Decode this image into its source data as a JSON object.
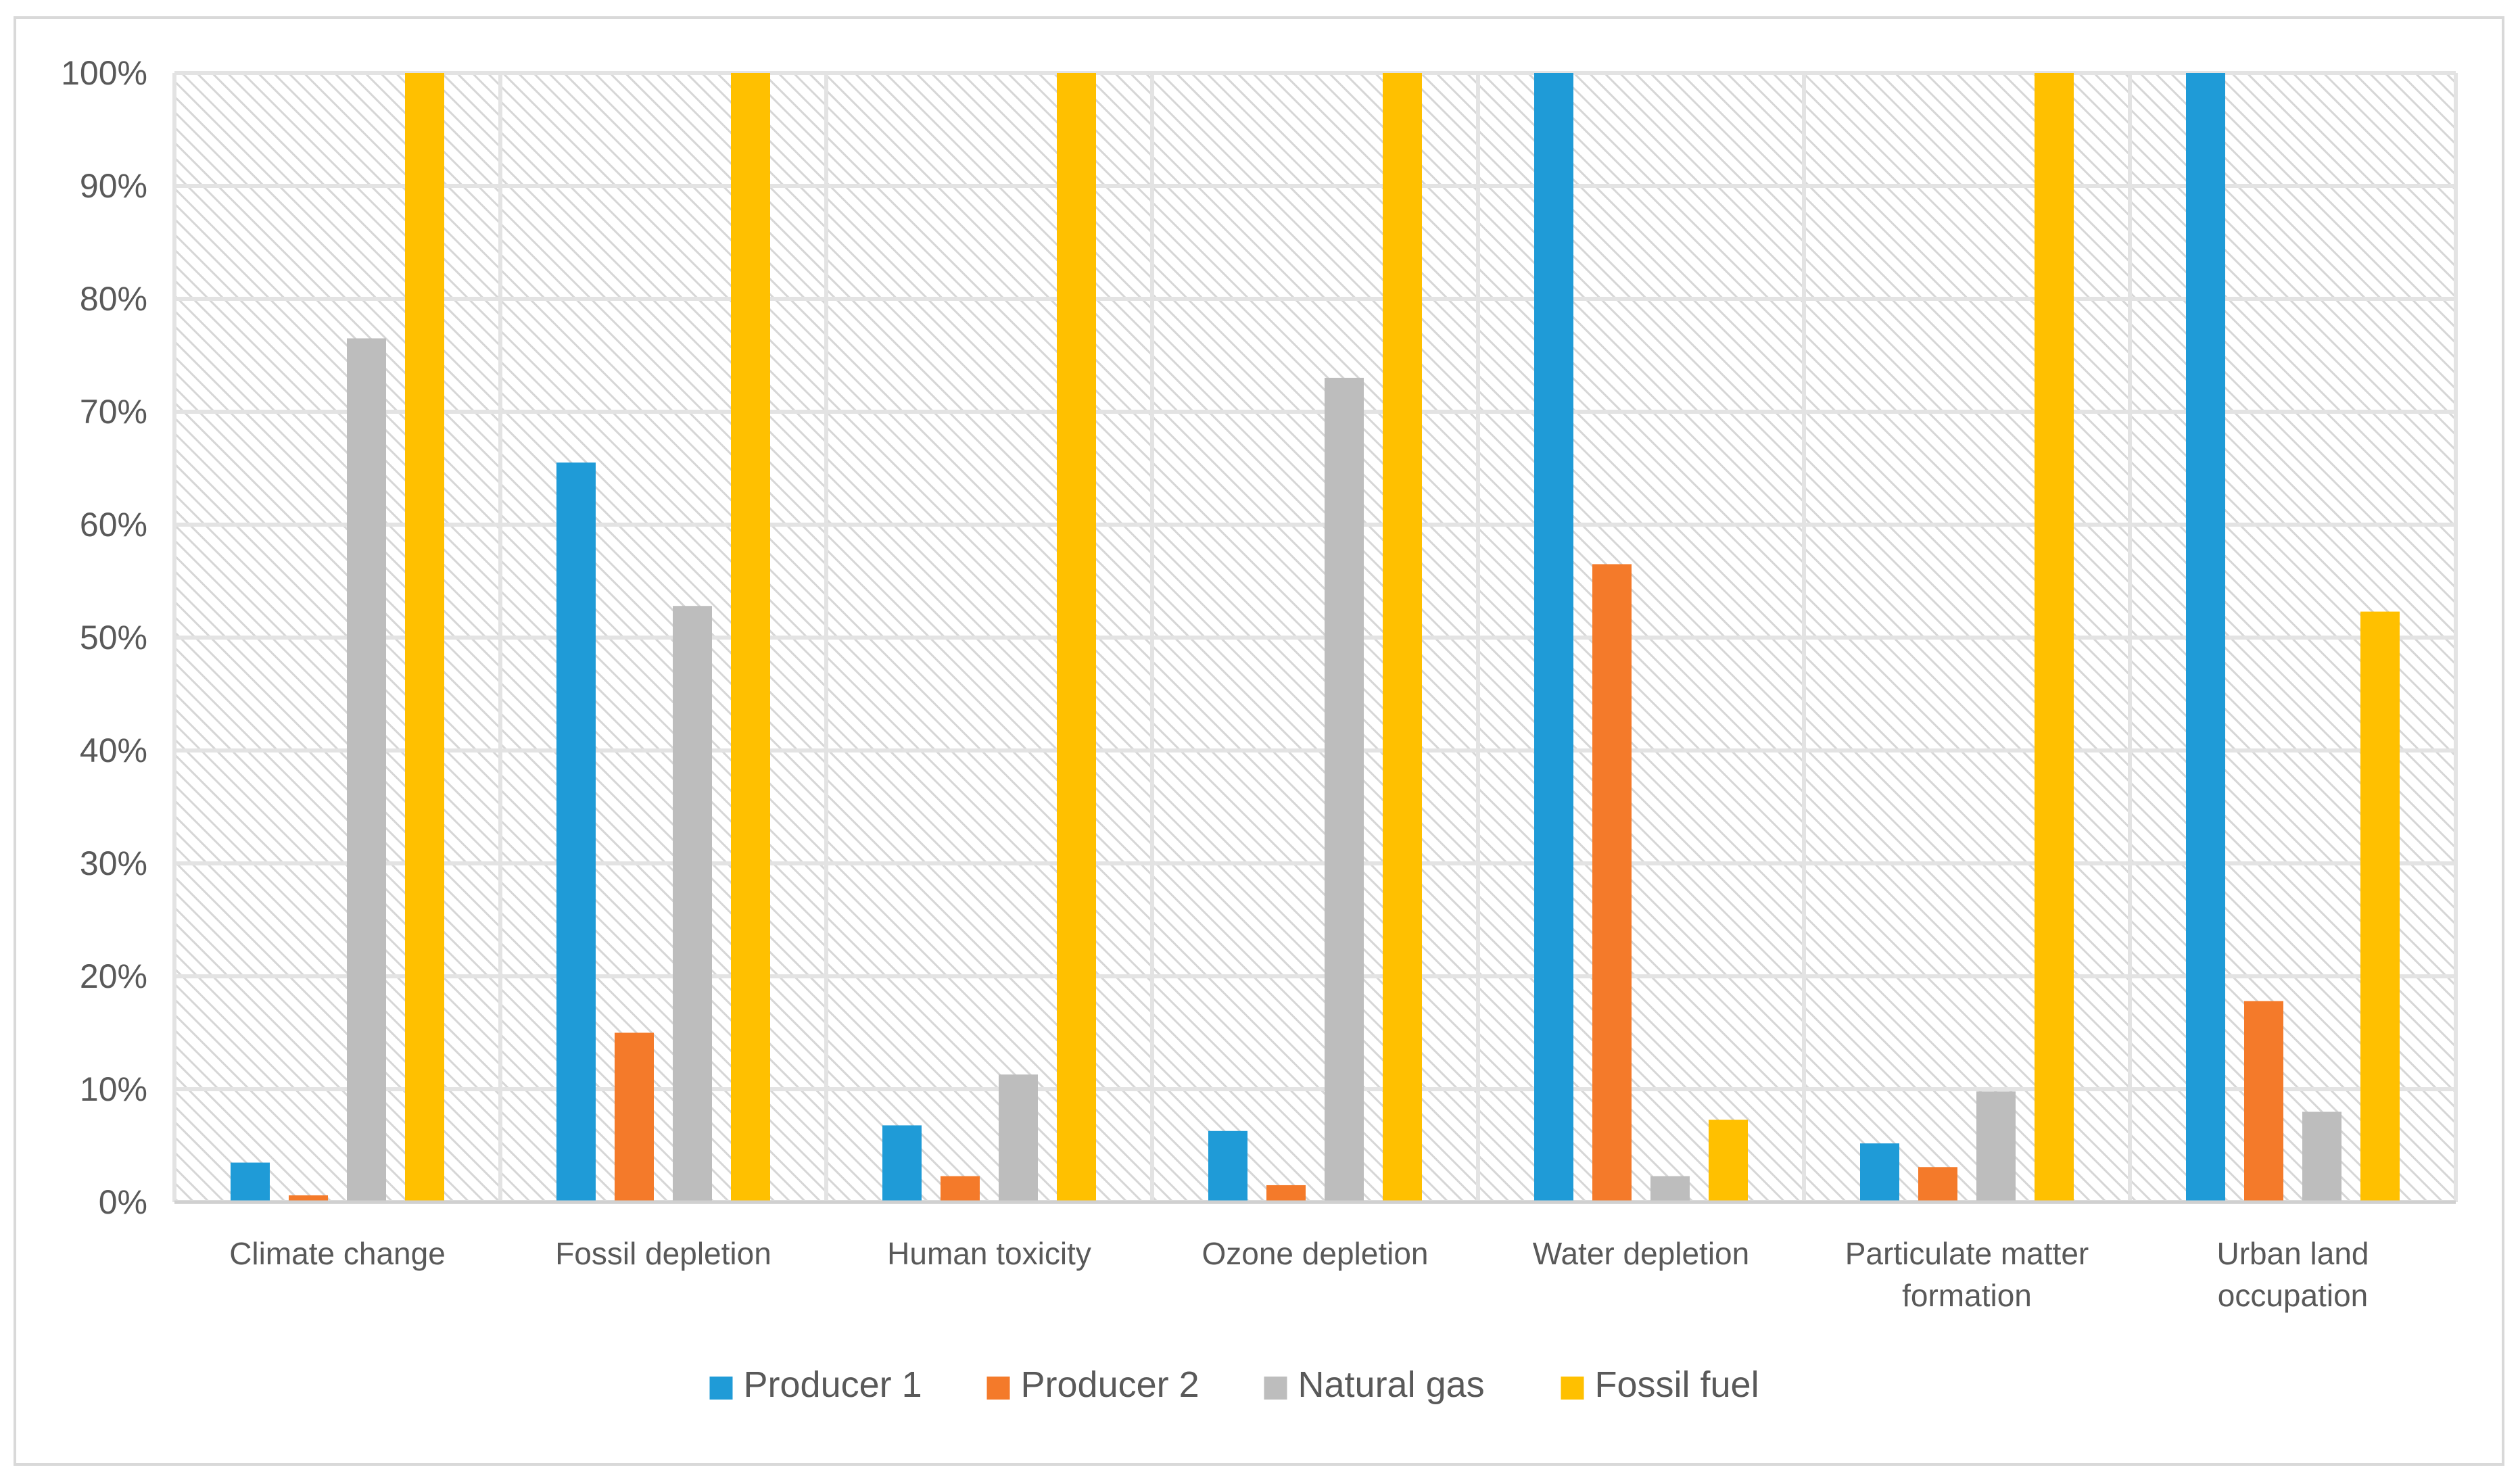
{
  "chart_data": {
    "type": "bar",
    "title": "",
    "xlabel": "",
    "ylabel": "",
    "ylim": [
      0,
      100
    ],
    "y_ticks": [
      0,
      10,
      20,
      30,
      40,
      50,
      60,
      70,
      80,
      90,
      100
    ],
    "y_tick_suffix": "%",
    "y_tick_labels": [
      "0%",
      "10%",
      "20%",
      "30%",
      "40%",
      "50%",
      "60%",
      "70%",
      "80%",
      "90%",
      "100%"
    ],
    "grid": true,
    "legend_position": "bottom",
    "categories": [
      "Climate change",
      "Fossil depletion",
      "Human toxicity",
      "Ozone  depletion",
      "Water depletion",
      "Particulate matter formation",
      "Urban land occupation"
    ],
    "category_label_lines": [
      [
        "Climate change"
      ],
      [
        "Fossil depletion"
      ],
      [
        "Human toxicity"
      ],
      [
        "Ozone  depletion"
      ],
      [
        "Water depletion"
      ],
      [
        "Particulate matter",
        "formation"
      ],
      [
        "Urban land",
        "occupation"
      ]
    ],
    "series": [
      {
        "name": "Producer 1",
        "color": "#1f9bd7",
        "values": [
          3.5,
          65.5,
          6.8,
          6.3,
          100,
          5.2,
          100
        ]
      },
      {
        "name": "Producer 2",
        "color": "#f47a2a",
        "values": [
          0.6,
          15,
          2.3,
          1.5,
          56.5,
          3.1,
          17.8
        ]
      },
      {
        "name": "Natural gas",
        "color": "#bdbdbd",
        "values": [
          76.5,
          52.8,
          11.3,
          73,
          2.3,
          9.8,
          8
        ]
      },
      {
        "name": "Fossil fuel",
        "color": "#ffc000",
        "values": [
          100,
          100,
          100,
          100,
          7.3,
          100,
          52.3
        ]
      }
    ]
  }
}
